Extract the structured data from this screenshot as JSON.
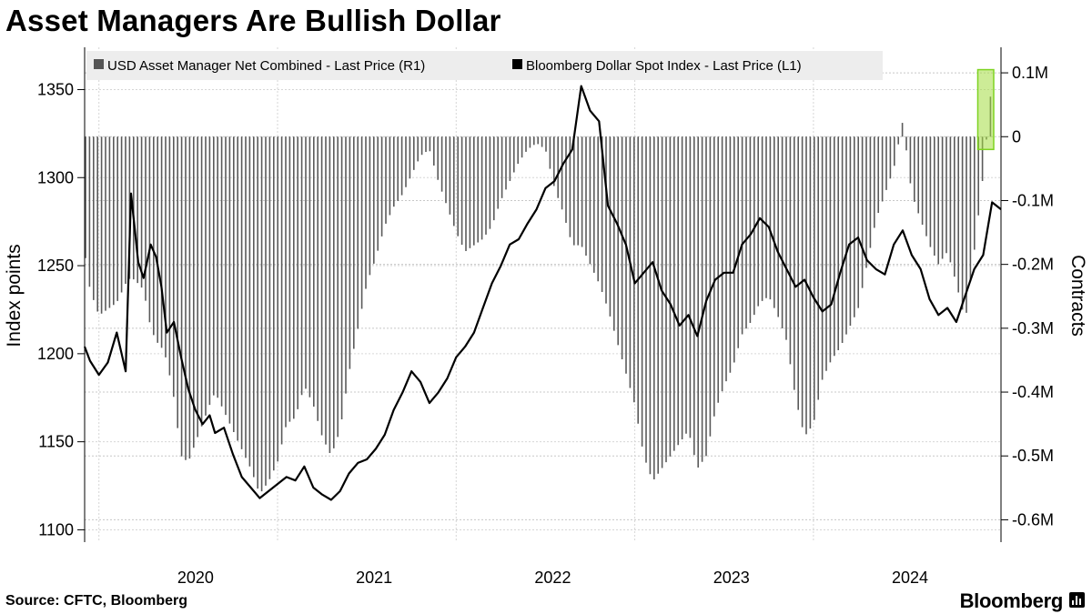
{
  "title": "Asset Managers Are Bullish Dollar",
  "source": "Source: CFTC, Bloomberg",
  "brand": "Bloomberg",
  "chart_data": {
    "type": "line+bar",
    "title": "Asset Managers Are Bullish Dollar",
    "legend": [
      {
        "label": "USD Asset Manager Net Combined - Last Price (R1)",
        "color": "#555555"
      },
      {
        "label": "Bloomberg Dollar Spot Index - Last Price (L1)",
        "color": "#000000"
      }
    ],
    "legend_placement": "top-left",
    "grid": true,
    "highlight_color": "#7ed321",
    "left_axis": {
      "label": "Index points",
      "range": [
        1093,
        1374
      ],
      "ticks": [
        "1100",
        "1150",
        "1200",
        "1250",
        "1300",
        "1350"
      ]
    },
    "right_axis": {
      "label": "Contracts",
      "range": [
        -635000,
        140000
      ],
      "ticks": [
        "0.1M",
        "0",
        "-0.1M",
        "-0.2M",
        "-0.3M",
        "-0.4M",
        "-0.5M",
        "-0.6M"
      ],
      "tick_values": [
        100000,
        0,
        -100000,
        -200000,
        -300000,
        -400000,
        -500000,
        -600000
      ]
    },
    "x_axis": {
      "ticks": [
        "2020",
        "2021",
        "2022",
        "2023",
        "2024"
      ],
      "tick_positions": [
        2020.0,
        2021.0,
        2022.0,
        2023.0,
        2024.0
      ],
      "range": [
        2019.42,
        2024.55
      ]
    },
    "series": [
      {
        "name": "Bloomberg Dollar Spot Index - Last Price (L1)",
        "type": "line",
        "axis": "left",
        "x": [
          2019.42,
          2019.45,
          2019.5,
          2019.55,
          2019.6,
          2019.65,
          2019.68,
          2019.72,
          2019.75,
          2019.79,
          2019.82,
          2019.85,
          2019.88,
          2019.92,
          2019.96,
          2020.0,
          2020.04,
          2020.08,
          2020.12,
          2020.15,
          2020.2,
          2020.25,
          2020.3,
          2020.35,
          2020.4,
          2020.45,
          2020.5,
          2020.55,
          2020.6,
          2020.65,
          2020.7,
          2020.75,
          2020.8,
          2020.85,
          2020.9,
          2020.95,
          2021.0,
          2021.05,
          2021.1,
          2021.15,
          2021.2,
          2021.25,
          2021.3,
          2021.35,
          2021.4,
          2021.45,
          2021.5,
          2021.55,
          2021.6,
          2021.65,
          2021.7,
          2021.75,
          2021.8,
          2021.85,
          2021.9,
          2021.95,
          2022.0,
          2022.05,
          2022.1,
          2022.15,
          2022.2,
          2022.25,
          2022.3,
          2022.35,
          2022.4,
          2022.45,
          2022.5,
          2022.55,
          2022.6,
          2022.65,
          2022.7,
          2022.75,
          2022.8,
          2022.85,
          2022.9,
          2022.95,
          2023.0,
          2023.05,
          2023.1,
          2023.15,
          2023.2,
          2023.25,
          2023.3,
          2023.35,
          2023.4,
          2023.45,
          2023.5,
          2023.55,
          2023.6,
          2023.65,
          2023.7,
          2023.75,
          2023.8,
          2023.85,
          2023.9,
          2023.95,
          2024.0,
          2024.05,
          2024.1,
          2024.15,
          2024.2,
          2024.25,
          2024.3,
          2024.35,
          2024.4,
          2024.45,
          2024.5,
          2024.55
        ],
        "values": [
          1204,
          1196,
          1188,
          1195,
          1212,
          1190,
          1291,
          1252,
          1243,
          1262,
          1255,
          1238,
          1212,
          1218,
          1198,
          1180,
          1168,
          1160,
          1165,
          1155,
          1158,
          1143,
          1130,
          1124,
          1118,
          1122,
          1126,
          1130,
          1128,
          1136,
          1124,
          1120,
          1117,
          1122,
          1132,
          1138,
          1140,
          1146,
          1154,
          1168,
          1178,
          1190,
          1184,
          1172,
          1178,
          1186,
          1198,
          1204,
          1212,
          1226,
          1240,
          1250,
          1262,
          1265,
          1274,
          1282,
          1294,
          1298,
          1308,
          1316,
          1352,
          1338,
          1332,
          1284,
          1274,
          1262,
          1240,
          1246,
          1252,
          1236,
          1228,
          1216,
          1222,
          1210,
          1230,
          1242,
          1246,
          1246,
          1262,
          1268,
          1277,
          1272,
          1258,
          1248,
          1238,
          1242,
          1232,
          1224,
          1228,
          1246,
          1262,
          1266,
          1253,
          1248,
          1245,
          1262,
          1270,
          1256,
          1248,
          1231,
          1222,
          1226,
          1218,
          1233,
          1248,
          1256,
          1286,
          1282
        ]
      },
      {
        "name": "USD Asset Manager Net Combined - Last Price (R1)",
        "type": "bar",
        "axis": "right",
        "x": [
          2019.42,
          2019.45,
          2019.5,
          2019.55,
          2019.6,
          2019.65,
          2019.68,
          2019.72,
          2019.75,
          2019.79,
          2019.82,
          2019.85,
          2019.88,
          2019.92,
          2019.96,
          2020.0,
          2020.04,
          2020.08,
          2020.12,
          2020.15,
          2020.2,
          2020.25,
          2020.3,
          2020.35,
          2020.4,
          2020.45,
          2020.5,
          2020.55,
          2020.6,
          2020.65,
          2020.7,
          2020.75,
          2020.8,
          2020.85,
          2020.9,
          2020.95,
          2021.0,
          2021.05,
          2021.1,
          2021.15,
          2021.2,
          2021.25,
          2021.3,
          2021.35,
          2021.4,
          2021.45,
          2021.5,
          2021.55,
          2021.6,
          2021.65,
          2021.7,
          2021.75,
          2021.8,
          2021.85,
          2021.9,
          2021.95,
          2022.0,
          2022.05,
          2022.1,
          2022.15,
          2022.2,
          2022.25,
          2022.3,
          2022.35,
          2022.4,
          2022.45,
          2022.5,
          2022.55,
          2022.6,
          2022.65,
          2022.7,
          2022.75,
          2022.8,
          2022.85,
          2022.9,
          2022.95,
          2023.0,
          2023.05,
          2023.1,
          2023.15,
          2023.2,
          2023.25,
          2023.3,
          2023.35,
          2023.4,
          2023.45,
          2023.5,
          2023.55,
          2023.6,
          2023.65,
          2023.7,
          2023.75,
          2023.8,
          2023.85,
          2023.9,
          2023.95,
          2024.0,
          2024.05,
          2024.1,
          2024.15,
          2024.2,
          2024.25,
          2024.3,
          2024.35,
          2024.4,
          2024.45,
          2024.5,
          2024.55
        ],
        "values": [
          -180000,
          -240000,
          -280000,
          -270000,
          -260000,
          -230000,
          -220000,
          -230000,
          -240000,
          -300000,
          -320000,
          -330000,
          -350000,
          -410000,
          -500000,
          -510000,
          -480000,
          -450000,
          -420000,
          -400000,
          -430000,
          -460000,
          -490000,
          -520000,
          -560000,
          -540000,
          -510000,
          -450000,
          -440000,
          -390000,
          -420000,
          -470000,
          -500000,
          -460000,
          -370000,
          -300000,
          -230000,
          -190000,
          -140000,
          -110000,
          -90000,
          -60000,
          -30000,
          -20000,
          -70000,
          -110000,
          -150000,
          -180000,
          -170000,
          -160000,
          -140000,
          -100000,
          -70000,
          -40000,
          -20000,
          -10000,
          -20000,
          -80000,
          -120000,
          -170000,
          -170000,
          -200000,
          -230000,
          -270000,
          -320000,
          -370000,
          -420000,
          -500000,
          -540000,
          -520000,
          -500000,
          -480000,
          -460000,
          -520000,
          -500000,
          -430000,
          -390000,
          -360000,
          -310000,
          -290000,
          -260000,
          -250000,
          -280000,
          -320000,
          -410000,
          -470000,
          -450000,
          -380000,
          -350000,
          -330000,
          -300000,
          -270000,
          -200000,
          -130000,
          -90000,
          -50000,
          25000,
          -90000,
          -130000,
          -170000,
          -200000,
          -180000,
          -230000,
          -290000,
          -180000,
          -60000,
          90000,
          -20000
        ]
      }
    ]
  }
}
